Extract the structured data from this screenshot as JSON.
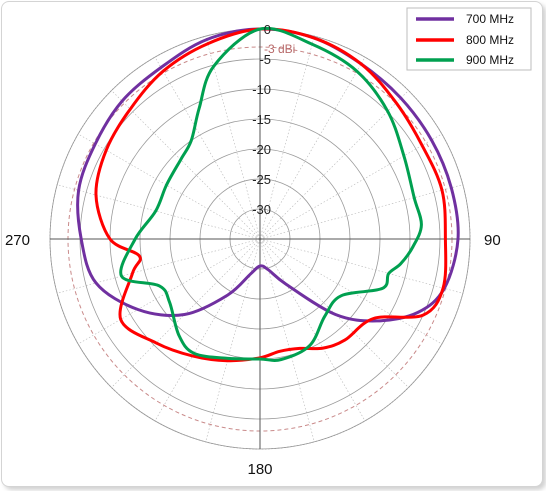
{
  "chart_data": {
    "type": "line",
    "subtype": "polar",
    "title": "",
    "radial_axis": {
      "unit": "dBi",
      "min": -35,
      "max": 0,
      "ticks": [
        0,
        -5,
        -10,
        -15,
        -20,
        -25,
        -30
      ],
      "tick_labels": [
        "0",
        "-5",
        "-10",
        "-15",
        "-20",
        "-25",
        "-30"
      ]
    },
    "angular_axis": {
      "direction": "clockwise",
      "zero_at": "top",
      "labels": [
        {
          "angle": 90,
          "text": "90"
        },
        {
          "angle": 180,
          "text": "180"
        },
        {
          "angle": 270,
          "text": "270"
        }
      ]
    },
    "reference_circle": {
      "value": -3,
      "label": "-3 dBi",
      "color": "#c98a8a"
    },
    "legend": {
      "position": "top-right"
    },
    "grid": true,
    "series": [
      {
        "name": "700 MHz",
        "color": "#7030a0",
        "points": [
          [
            0,
            0
          ],
          [
            15,
            -0.3
          ],
          [
            30,
            -1.3
          ],
          [
            45,
            -1.8
          ],
          [
            60,
            -2
          ],
          [
            75,
            -2
          ],
          [
            90,
            -2
          ],
          [
            105,
            -3.2
          ],
          [
            115,
            -6
          ],
          [
            125,
            -11.2
          ],
          [
            135,
            -17.2
          ],
          [
            150,
            -26.3
          ],
          [
            165,
            -29.7
          ],
          [
            180,
            -30.5
          ],
          [
            195,
            -29
          ],
          [
            210,
            -24.2
          ],
          [
            225,
            -17.2
          ],
          [
            240,
            -11.5
          ],
          [
            255,
            -6.7
          ],
          [
            270,
            -5.2
          ],
          [
            285,
            -3.7
          ],
          [
            300,
            -3.3
          ],
          [
            315,
            -2.5
          ],
          [
            330,
            -2
          ],
          [
            345,
            -0.6
          ],
          [
            360,
            0
          ]
        ]
      },
      {
        "name": "800 MHz",
        "color": "#ff0000",
        "points": [
          [
            0,
            0
          ],
          [
            15,
            -0.3
          ],
          [
            30,
            -1.3
          ],
          [
            45,
            -2.9
          ],
          [
            60,
            -3.8
          ],
          [
            75,
            -3.6
          ],
          [
            90,
            -4.1
          ],
          [
            105,
            -3.4
          ],
          [
            115,
            -5
          ],
          [
            125,
            -11.9
          ],
          [
            140,
            -13
          ],
          [
            150,
            -14
          ],
          [
            160,
            -15.6
          ],
          [
            170,
            -16
          ],
          [
            180,
            -15.2
          ],
          [
            195,
            -14
          ],
          [
            210,
            -12.5
          ],
          [
            225,
            -10.5
          ],
          [
            240,
            -8.2
          ],
          [
            255,
            -13
          ],
          [
            262,
            -14.7
          ],
          [
            270,
            -10
          ],
          [
            285,
            -6.7
          ],
          [
            300,
            -5.4
          ],
          [
            315,
            -4.4
          ],
          [
            330,
            -2.7
          ],
          [
            345,
            -1.3
          ],
          [
            360,
            0
          ]
        ]
      },
      {
        "name": "900 MHz",
        "color": "#00a050",
        "points": [
          [
            0,
            0
          ],
          [
            15,
            -1.4
          ],
          [
            30,
            -2.7
          ],
          [
            45,
            -4.9
          ],
          [
            60,
            -7.3
          ],
          [
            75,
            -8.4
          ],
          [
            85,
            -8
          ],
          [
            93,
            -9.5
          ],
          [
            100,
            -11.2
          ],
          [
            105,
            -12.8
          ],
          [
            112,
            -13
          ],
          [
            125,
            -18.5
          ],
          [
            140,
            -18.2
          ],
          [
            155,
            -15.4
          ],
          [
            170,
            -14.6
          ],
          [
            180,
            -15
          ],
          [
            195,
            -14.4
          ],
          [
            210,
            -13
          ],
          [
            220,
            -14
          ],
          [
            235,
            -16.6
          ],
          [
            245,
            -16.5
          ],
          [
            255,
            -11.1
          ],
          [
            270,
            -14.2
          ],
          [
            285,
            -17
          ],
          [
            300,
            -17
          ],
          [
            315,
            -16.3
          ],
          [
            325,
            -15
          ],
          [
            335,
            -11
          ],
          [
            345,
            -5.2
          ],
          [
            360,
            0
          ]
        ]
      }
    ]
  }
}
